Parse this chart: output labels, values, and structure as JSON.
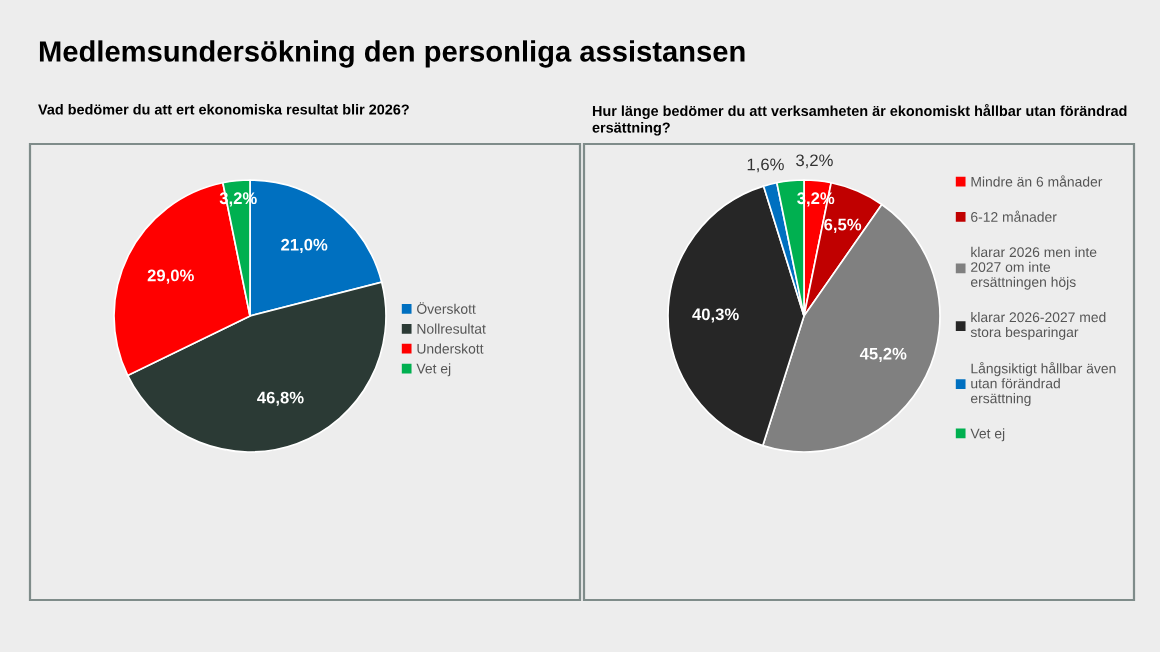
{
  "chart_data": [
    {
      "type": "pie",
      "title": "Medlemsundersökning den personliga assistansen",
      "subtitle": "Vad bedömer du att ert ekonomiska resultat blir 2026?",
      "categories": [
        "Överskott",
        "Nollresultat",
        "Underskott",
        "Vet ej"
      ],
      "values": [
        21.0,
        46.8,
        29.0,
        3.2
      ],
      "colors": [
        "#0070c0",
        "#2b3a35",
        "#ff0000",
        "#00b050"
      ],
      "value_labels": [
        "21,0%",
        "46,8%",
        "29,0%",
        "3,2%"
      ],
      "legend": "right"
    },
    {
      "type": "pie",
      "subtitle": "Hur länge bedömer du att verksamheten är ekonomiskt hållbar utan förändrad ersättning?",
      "categories": [
        "Mindre än 6 månader",
        "6-12 månader",
        "klarar 2026 men inte 2027 om inte ersättningen höjs",
        "klarar 2026-2027 med stora besparingar",
        "Långsiktigt hållbar även utan förändrad ersättning",
        "Vet ej"
      ],
      "values": [
        3.2,
        6.5,
        45.2,
        40.3,
        1.6,
        3.2
      ],
      "colors": [
        "#ff0000",
        "#c00000",
        "#808080",
        "#262626",
        "#0070c0",
        "#00b050"
      ],
      "value_labels": [
        "3,2%",
        "6,5%",
        "45,2%",
        "40,3%",
        "1,6%",
        "3,2%"
      ],
      "legend": "right"
    }
  ]
}
